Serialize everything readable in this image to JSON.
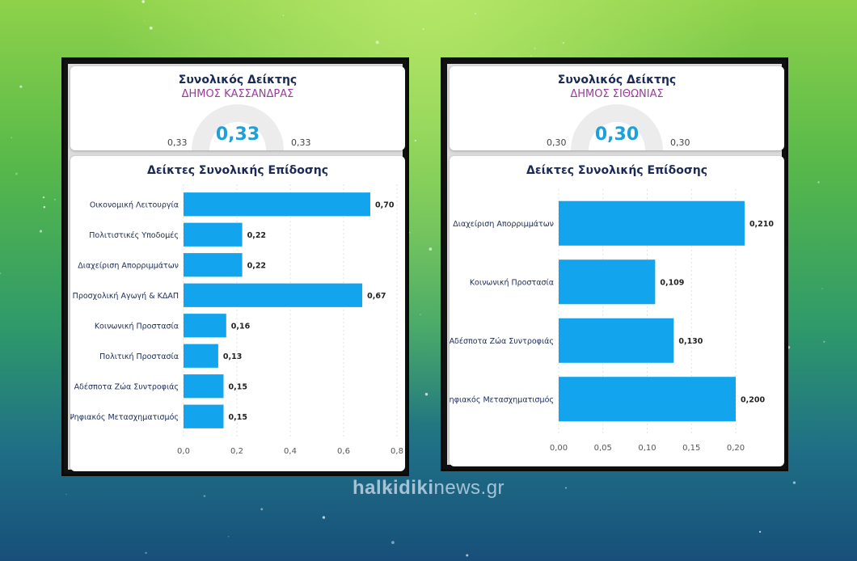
{
  "panels": [
    {
      "kpi": {
        "title": "Συνολικός Δείκτης",
        "subtitle": "ΔΗΜΟΣ ΚΑΣΣΑΝΔΡΑΣ",
        "value": "0,33",
        "min_label": "0,33",
        "max_label": "0,33"
      },
      "chart_title": "Δείκτες Συνολικής Επίδοσης"
    },
    {
      "kpi": {
        "title": "Συνολικός Δείκτης",
        "subtitle": "ΔΗΜΟΣ ΣΙΘΩΝΙΑΣ",
        "value": "0,30",
        "min_label": "0,30",
        "max_label": "0,30"
      },
      "chart_title": "Δείκτες Συνολικής Επίδοσης"
    }
  ],
  "chart_data": [
    {
      "type": "bar",
      "orientation": "horizontal",
      "title": "Δείκτες Συνολικής Επίδοσης",
      "categories": [
        "Οικονομική Λειτουργία",
        "Πολιτιστικές Υποδομές",
        "Διαχείριση Απορριμμάτων",
        "Προσχολική Αγωγή & ΚΔΑΠ",
        "Κοινωνική Προστασία",
        "Πολιτική Προστασία",
        "Αδέσποτα Ζώα Συντροφιάς",
        "Ψηφιακός Μετασχηματισμός"
      ],
      "values": [
        0.7,
        0.22,
        0.22,
        0.67,
        0.16,
        0.13,
        0.15,
        0.15
      ],
      "value_labels": [
        "0,70",
        "0,22",
        "0,22",
        "0,67",
        "0,16",
        "0,13",
        "0,15",
        "0,15"
      ],
      "xlim": [
        0,
        0.8
      ],
      "ticks": [
        0,
        0.2,
        0.4,
        0.6,
        0.8
      ],
      "tick_labels": [
        "0,0",
        "0,2",
        "0,4",
        "0,6",
        "0,8"
      ],
      "color": "#12a4ec"
    },
    {
      "type": "bar",
      "orientation": "horizontal",
      "title": "Δείκτες Συνολικής Επίδοσης",
      "categories": [
        "Διαχείριση Απορριμμάτων",
        "Κοινωνική Προστασία",
        "Αδέσποτα Ζώα Συντροφιάς",
        "Ψηφιακός Μετασχηματισμός"
      ],
      "values": [
        0.21,
        0.109,
        0.13,
        0.2
      ],
      "value_labels": [
        "0,210",
        "0,109",
        "0,130",
        "0,200"
      ],
      "xlim": [
        0,
        0.2
      ],
      "ticks": [
        0,
        0.05,
        0.1,
        0.15,
        0.2
      ],
      "tick_labels": [
        "0,00",
        "0,05",
        "0,10",
        "0,15",
        "0,20"
      ],
      "color": "#12a4ec"
    }
  ],
  "watermark": {
    "bold": "halkidiki",
    "rest": "news.gr"
  }
}
